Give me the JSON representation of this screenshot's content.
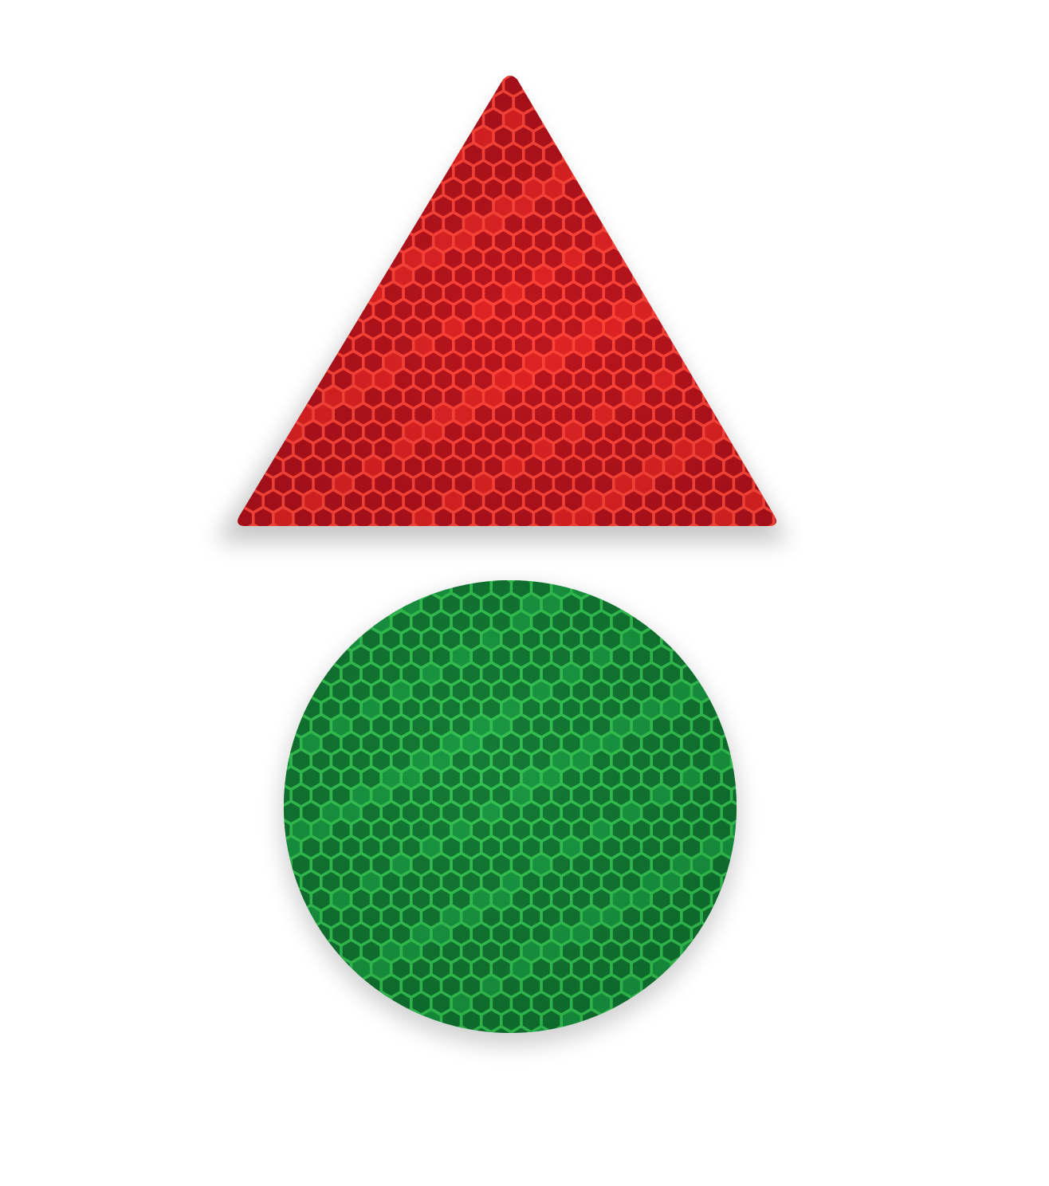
{
  "background_color": "#ffffff",
  "reflectors": [
    {
      "shape": "triangle",
      "icon": "triangle-reflector-icon",
      "colors": {
        "base": "#c8181a",
        "cell": "#a8101a",
        "cell_highlight": "#d82222",
        "honeycomb_line": "#ff4a3c"
      }
    },
    {
      "shape": "circle",
      "icon": "circle-reflector-icon",
      "colors": {
        "base": "#14863a",
        "cell": "#0f6e2e",
        "cell_highlight": "#17913e",
        "honeycomb_line": "#36c452"
      }
    }
  ]
}
